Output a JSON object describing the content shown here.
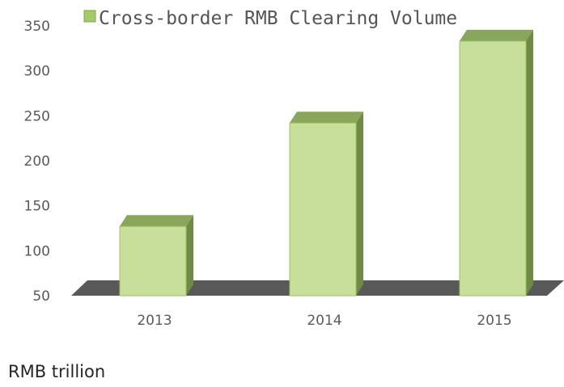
{
  "chart_data": {
    "type": "bar",
    "categories": [
      "2013",
      "2014",
      "2015"
    ],
    "series": [
      {
        "name": "Cross-border RMB Clearing Volume",
        "values": [
          127,
          242,
          333
        ]
      }
    ],
    "yticks": [
      "50",
      "100",
      "150",
      "200",
      "250",
      "300",
      "350"
    ],
    "ylim": [
      50,
      350
    ],
    "unit_label": "RMB trillion",
    "legend_position": "top",
    "grid": false,
    "three_d": true,
    "colors": {
      "bar_front": "#c8df9b",
      "bar_top": "#8aa55c",
      "bar_side": "#6f8a45",
      "bar_edge": "#9bc45a",
      "floor": "#595959",
      "legend_swatch": "#a6c96a"
    }
  }
}
